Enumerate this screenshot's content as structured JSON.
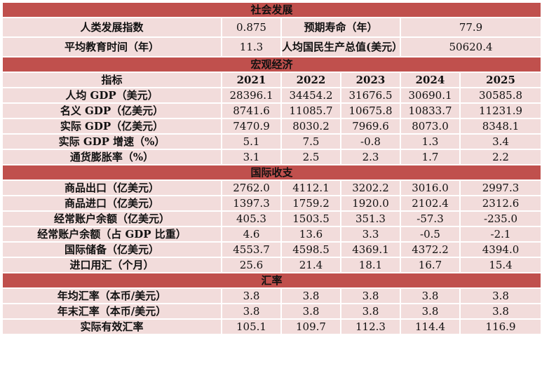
{
  "social": {
    "title": "社会发展",
    "hdi_label": "人类发展指数",
    "hdi_value": "0.875",
    "life_label": "预期寿命（年）",
    "life_value": "77.9",
    "edu_label": "平均教育时间（年）",
    "edu_value": "11.3",
    "gni_label": "人均国民生产总值(美元）",
    "gni_value": "50620.4"
  },
  "macro": {
    "title": "宏观经济",
    "header": [
      "指标",
      "2021",
      "2022",
      "2023",
      "2024",
      "2025"
    ],
    "rows": [
      {
        "label": "人均 GDP（美元）",
        "values": [
          "28396.1",
          "34454.2",
          "31676.5",
          "30690.1",
          "30585.8"
        ]
      },
      {
        "label": "名义 GDP（亿美元）",
        "values": [
          "8741.6",
          "11085.7",
          "10675.8",
          "10833.7",
          "11231.9"
        ]
      },
      {
        "label": "实际 GDP（亿美元）",
        "values": [
          "7470.9",
          "8030.2",
          "7969.6",
          "8073.0",
          "8348.1"
        ]
      },
      {
        "label": "实际 GDP 增速（%）",
        "values": [
          "5.1",
          "7.5",
          "-0.8",
          "1.3",
          "3.4"
        ]
      },
      {
        "label": "通货膨胀率（%）",
        "values": [
          "3.1",
          "2.5",
          "2.3",
          "1.7",
          "2.2"
        ]
      }
    ]
  },
  "bop": {
    "title": "国际收支",
    "rows": [
      {
        "label": "商品出口（亿美元）",
        "values": [
          "2762.0",
          "4112.1",
          "3202.2",
          "3016.0",
          "2997.3"
        ]
      },
      {
        "label": "商品进口（亿美元）",
        "values": [
          "1397.3",
          "1759.2",
          "1920.0",
          "2102.4",
          "2312.6"
        ]
      },
      {
        "label": "经常账户余额（亿美元）",
        "values": [
          "405.3",
          "1503.5",
          "351.3",
          "-57.3",
          "-235.0"
        ]
      },
      {
        "label": "经常账户余额（占 GDP 比重）",
        "values": [
          "4.6",
          "13.6",
          "3.3",
          "-0.5",
          "-2.1"
        ]
      },
      {
        "label": "国际储备（亿美元）",
        "values": [
          "4553.7",
          "4598.5",
          "4369.1",
          "4372.2",
          "4394.0"
        ]
      },
      {
        "label": "进口用汇（个月）",
        "values": [
          "25.6",
          "21.4",
          "18.1",
          "16.7",
          "15.4"
        ]
      }
    ]
  },
  "fx": {
    "title": "汇率",
    "rows": [
      {
        "label": "年均汇率（本币/美元）",
        "values": [
          "3.8",
          "3.8",
          "3.8",
          "3.8",
          "3.8"
        ]
      },
      {
        "label": "年末汇率（本币/美元）",
        "values": [
          "3.8",
          "3.8",
          "3.8",
          "3.8",
          "3.8"
        ]
      },
      {
        "label": "实际有效汇率",
        "values": [
          "105.1",
          "109.7",
          "112.3",
          "114.4",
          "116.9"
        ]
      }
    ]
  }
}
